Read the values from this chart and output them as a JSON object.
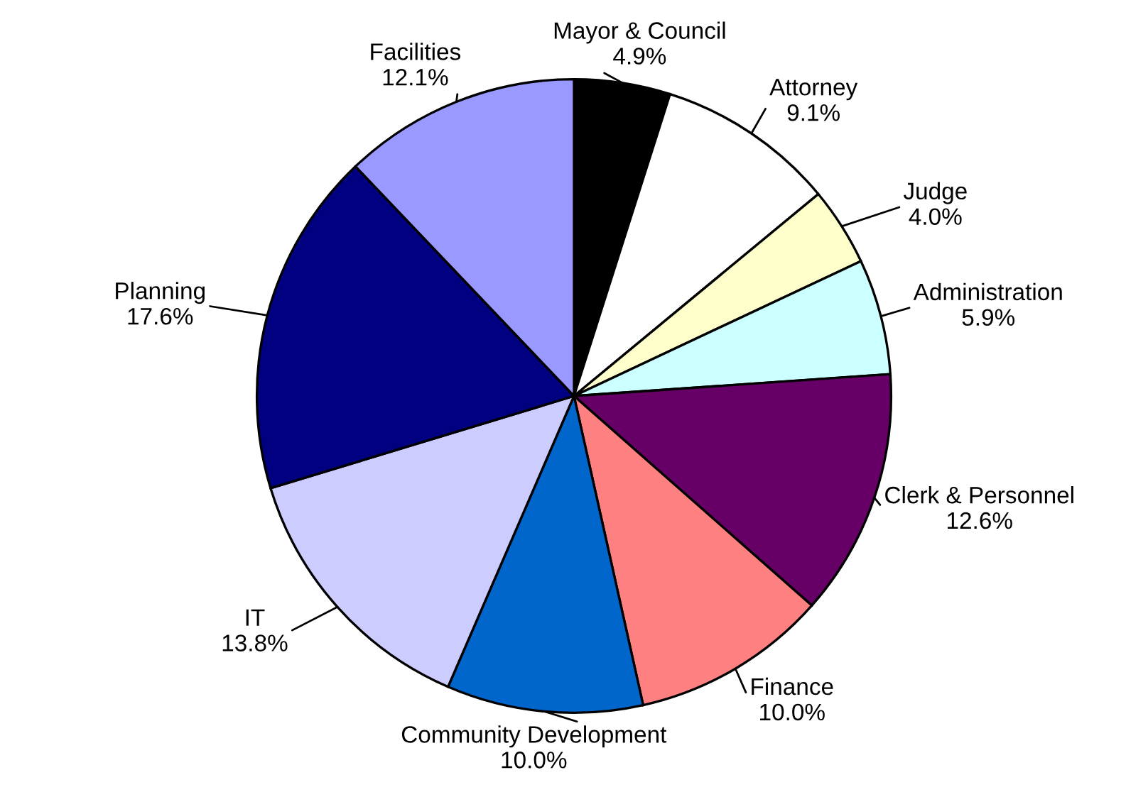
{
  "chart_data": {
    "type": "pie",
    "categories": [
      "Mayor & Council",
      "Attorney",
      "Judge",
      "Administration",
      "Clerk & Personnel",
      "Finance",
      "Community Development",
      "IT",
      "Planning",
      "Facilities"
    ],
    "values": [
      4.9,
      9.1,
      4.0,
      5.9,
      12.6,
      10.0,
      10.0,
      13.8,
      17.6,
      12.1
    ],
    "colors": [
      "#000000",
      "#ffffff",
      "#ffffcc",
      "#ccffff",
      "#660066",
      "#ff8080",
      "#0066cc",
      "#ccccff",
      "#000080",
      "#9999ff"
    ],
    "value_labels": [
      "4.9%",
      "9.1%",
      "4.0%",
      "5.9%",
      "12.6%",
      "10.0%",
      "10.0%",
      "13.8%",
      "17.6%",
      "12.1%"
    ]
  }
}
